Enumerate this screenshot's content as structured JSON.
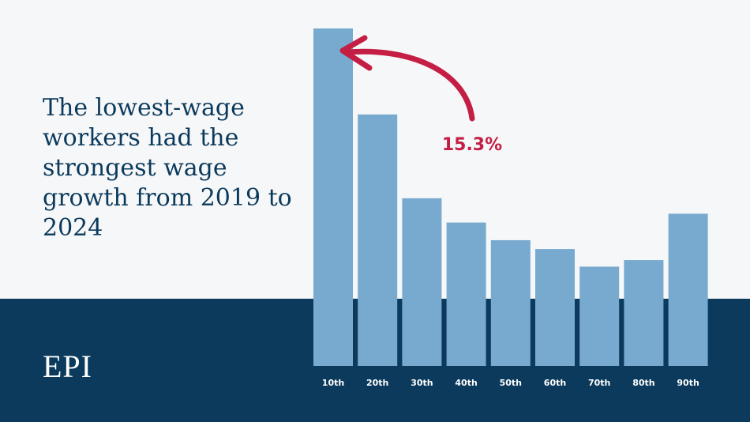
{
  "headline": "The lowest-wage workers had the strongest wage growth from 2019 to 2024",
  "logo": "EPI",
  "colors": {
    "bar": "#78aad0",
    "navy": "#0b3a5c",
    "accent": "#c41e45",
    "background": "#f6f7f8"
  },
  "chart_data": {
    "type": "bar",
    "categories": [
      "10th",
      "20th",
      "30th",
      "40th",
      "50th",
      "60th",
      "70th",
      "80th",
      "90th"
    ],
    "values": [
      15.3,
      11.4,
      7.6,
      6.5,
      5.7,
      5.3,
      4.5,
      4.8,
      6.9
    ],
    "annotation": {
      "category": "10th",
      "label": "15.3%"
    },
    "ylim": [
      0,
      15.3
    ],
    "grid": false,
    "title": "",
    "xlabel": "",
    "ylabel": ""
  }
}
